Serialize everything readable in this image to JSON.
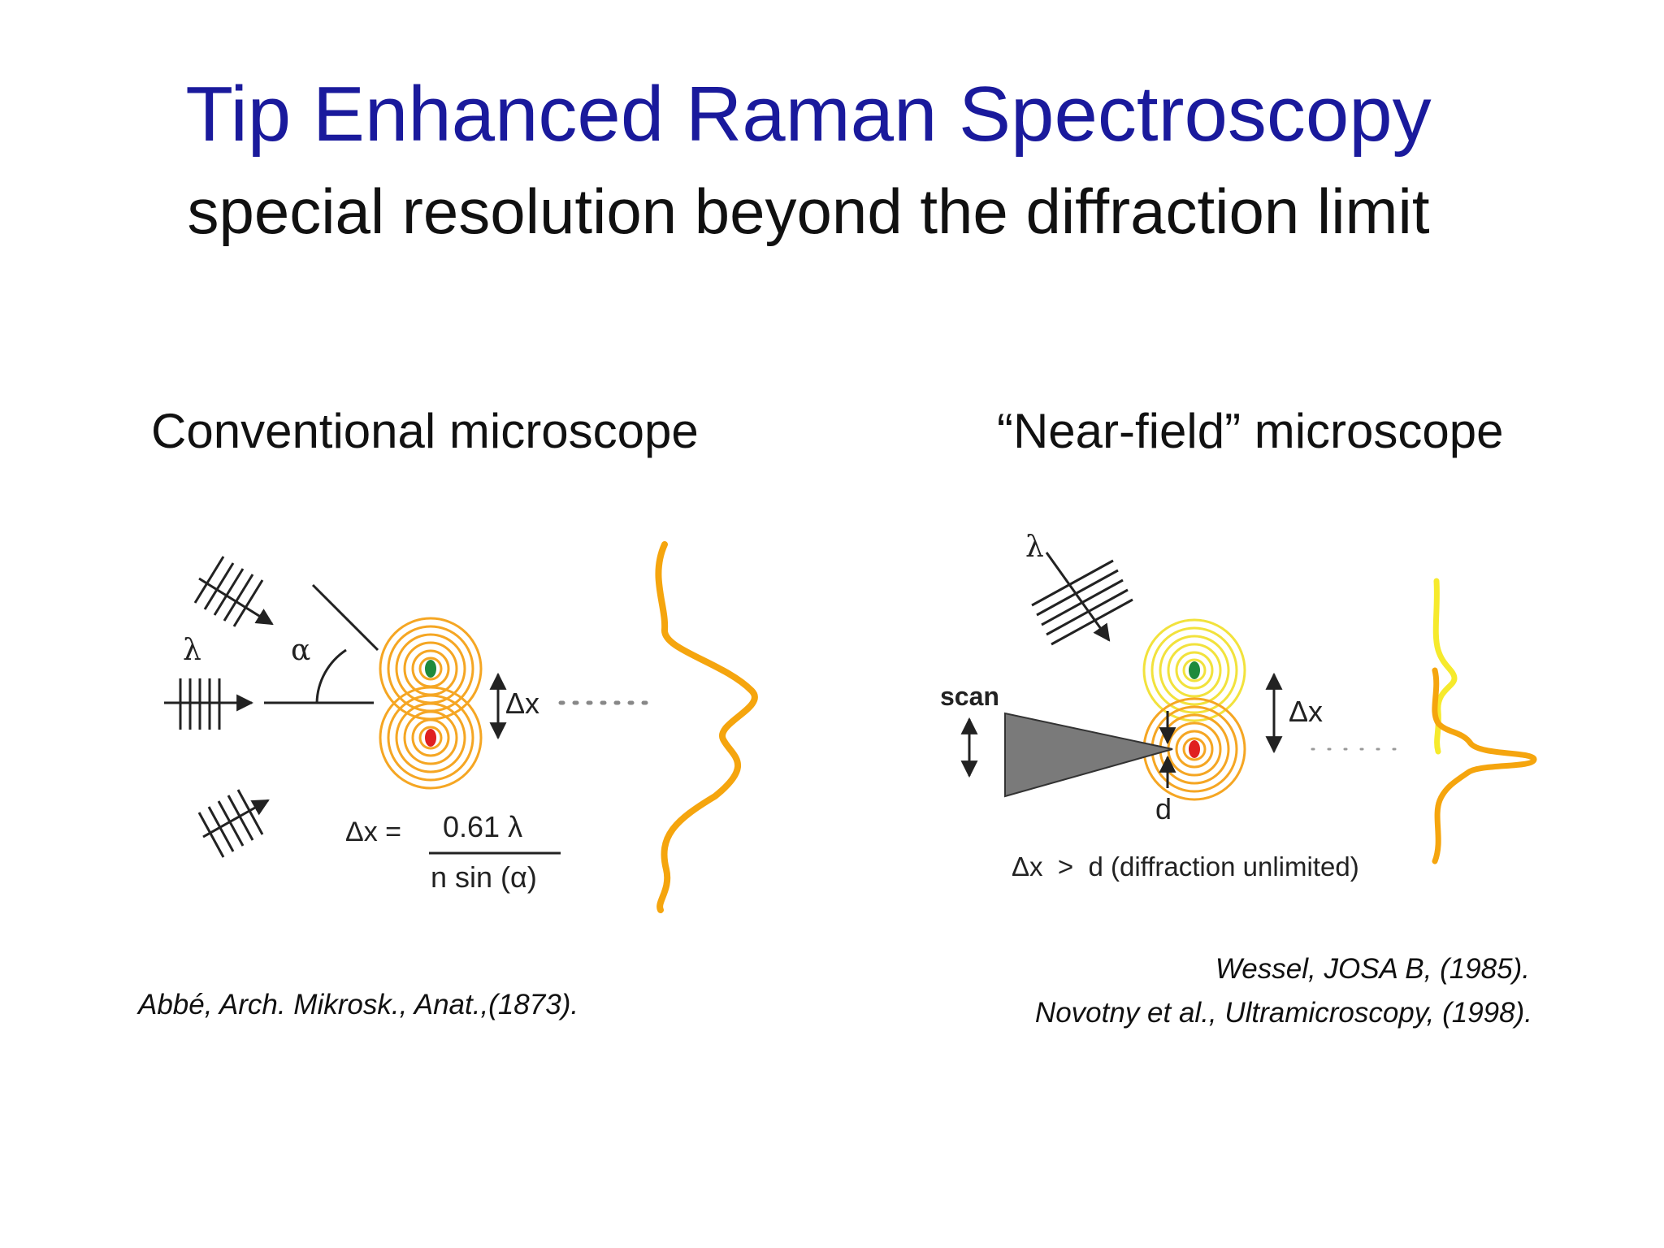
{
  "slide": {
    "title": "Tip Enhanced Raman Spectroscopy",
    "subtitle": "special resolution beyond the diffraction limit"
  },
  "left_panel": {
    "heading": "Conventional microscope",
    "labels": {
      "lambda": "λ",
      "alpha": "α",
      "delta_x": "Δx",
      "formula_lhs": "Δx =",
      "formula_numerator": "0.61 λ",
      "formula_denominator": "n sin (α)"
    },
    "reference": "Abbé, Arch. Mikrosk., Anat.,(1873)."
  },
  "right_panel": {
    "heading": "“Near-field” microscope",
    "labels": {
      "lambda": "λ",
      "scan": "scan",
      "delta_x": "Δx",
      "d": "d",
      "condition": "Δx  >  d (diffraction unlimited)"
    },
    "references": [
      "Wessel, JOSA B, (1985).",
      "Novotny et al., Ultramicroscopy, (1998)."
    ]
  },
  "colors": {
    "title": "#1a1a9c",
    "ring_orange": "#f5a623",
    "ring_yellow": "#f2e23c",
    "profile_orange": "#f5a50e",
    "profile_yellow": "#f6ea2c",
    "dot_green": "#1e8a3c",
    "dot_red": "#e02020",
    "tip_gray": "#7a7a7a"
  }
}
